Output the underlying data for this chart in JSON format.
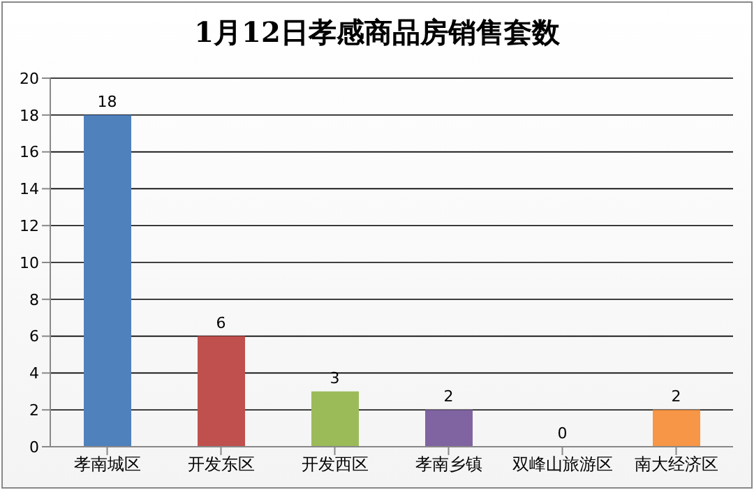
{
  "chart_data": {
    "type": "bar",
    "title": "1月12日孝感商品房销售套数",
    "categories": [
      "孝南城区",
      "开发东区",
      "开发西区",
      "孝南乡镇",
      "双峰山旅游区",
      "南大经济区"
    ],
    "values": [
      18,
      6,
      3,
      2,
      0,
      2
    ],
    "colors": [
      "#4f81bd",
      "#c0504d",
      "#9bbb59",
      "#8064a2",
      "#4bacc6",
      "#f79646"
    ],
    "ylim": [
      0,
      20
    ],
    "yticks": [
      0,
      2,
      4,
      6,
      8,
      10,
      12,
      14,
      16,
      18,
      20
    ],
    "grid": "y",
    "data_labels": true
  }
}
